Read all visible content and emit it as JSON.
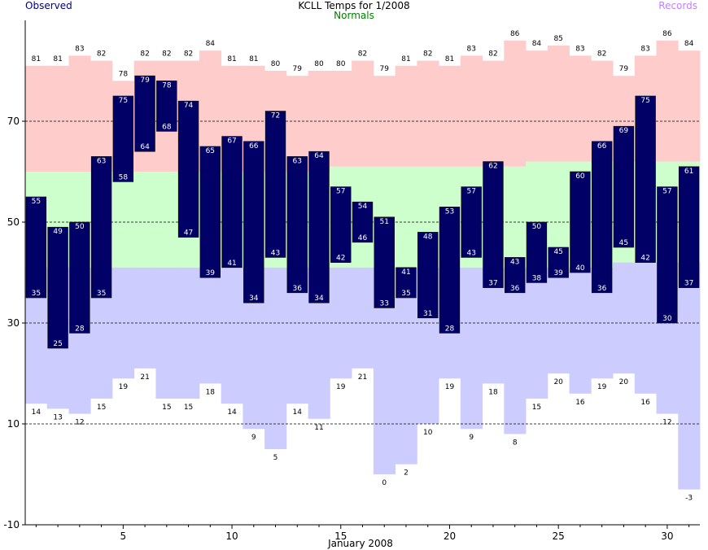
{
  "header": {
    "title": "KCLL Temps for 1/2008",
    "observed_label": "Observed",
    "normals_label": "Normals",
    "records_label": "Records"
  },
  "chart_data": {
    "type": "bar",
    "title": "KCLL Temps for 1/2008",
    "xlabel": "January 2008",
    "ylabel": "",
    "x_ticks": [
      5,
      10,
      15,
      20,
      25,
      30
    ],
    "y_ticks": [
      -10,
      10,
      30,
      50,
      70
    ],
    "ylim": [
      -10,
      90
    ],
    "grid": true,
    "colors": {
      "observed": "#000066",
      "normal": "#ccffcc",
      "record_high": "#ffcccc",
      "record_low": "#ccccff",
      "observed_label": "#000080",
      "normals_label": "#008000",
      "records_label": "#c080ff"
    },
    "days": [
      1,
      2,
      3,
      4,
      5,
      6,
      7,
      8,
      9,
      10,
      11,
      12,
      13,
      14,
      15,
      16,
      17,
      18,
      19,
      20,
      21,
      22,
      23,
      24,
      25,
      26,
      27,
      28,
      29,
      30,
      31
    ],
    "series": [
      {
        "name": "Observed",
        "key": "obs_high",
        "values": [
          55,
          49,
          50,
          63,
          75,
          79,
          78,
          74,
          65,
          67,
          66,
          72,
          63,
          64,
          57,
          54,
          51,
          41,
          48,
          53,
          57,
          62,
          43,
          50,
          45,
          60,
          66,
          69,
          75,
          57,
          61
        ]
      },
      {
        "name": "Observed",
        "key": "obs_low",
        "values": [
          35,
          25,
          28,
          35,
          58,
          64,
          68,
          47,
          39,
          41,
          34,
          43,
          36,
          34,
          42,
          46,
          33,
          35,
          31,
          28,
          43,
          37,
          36,
          38,
          39,
          40,
          36,
          45,
          42,
          30,
          37
        ]
      },
      {
        "name": "Records",
        "key": "record_high",
        "values": [
          81,
          81,
          83,
          82,
          78,
          82,
          82,
          82,
          84,
          81,
          81,
          80,
          79,
          80,
          80,
          82,
          79,
          81,
          82,
          81,
          83,
          82,
          86,
          84,
          85,
          83,
          82,
          79,
          83,
          86,
          84
        ]
      },
      {
        "name": "Records",
        "key": "record_low",
        "values": [
          14,
          13,
          12,
          15,
          19,
          21,
          15,
          15,
          18,
          14,
          9,
          5,
          14,
          11,
          19,
          21,
          0,
          2,
          10,
          19,
          9,
          18,
          8,
          15,
          20,
          16,
          19,
          20,
          16,
          12,
          -3
        ]
      },
      {
        "name": "Normals",
        "key": "normal_high",
        "values": [
          60,
          60,
          60,
          60,
          60,
          60,
          60,
          60,
          60,
          60,
          60,
          60,
          60,
          60,
          61,
          61,
          61,
          61,
          61,
          61,
          61,
          61,
          61,
          62,
          62,
          62,
          62,
          62,
          62,
          62,
          62
        ]
      },
      {
        "name": "Normals",
        "key": "normal_low",
        "values": [
          41,
          41,
          41,
          41,
          41,
          41,
          41,
          41,
          41,
          41,
          41,
          41,
          41,
          41,
          41,
          41,
          41,
          41,
          41,
          41,
          41,
          41,
          41,
          41,
          41,
          41,
          41,
          42,
          42,
          42,
          42
        ]
      }
    ]
  }
}
